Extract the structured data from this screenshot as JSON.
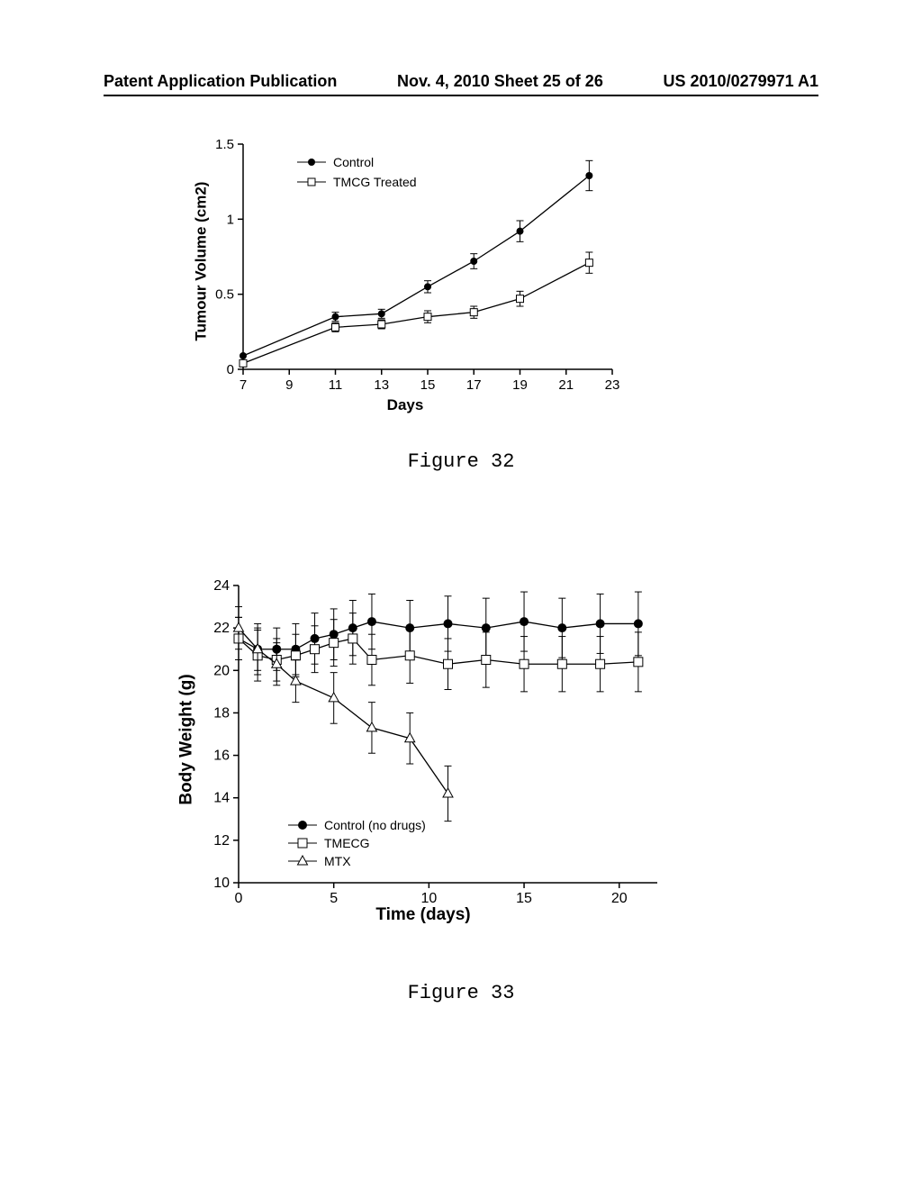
{
  "header": {
    "left": "Patent Application Publication",
    "center": "Nov. 4, 2010  Sheet 25 of 26",
    "right": "US 2010/0279971 A1"
  },
  "chart1": {
    "type": "line",
    "title": "Figure 32",
    "ylabel": "Tumour Volume (cm2)",
    "xlabel": "Days",
    "xlim": [
      7,
      23
    ],
    "ylim": [
      0,
      1.5
    ],
    "xticks": [
      7,
      9,
      11,
      13,
      15,
      17,
      19,
      21,
      23
    ],
    "yticks": [
      0,
      0.5,
      1,
      1.5
    ],
    "ylabel_fontsize": 17,
    "xlabel_fontsize": 17,
    "tick_fontsize": 15,
    "series": [
      {
        "name": "Control",
        "marker": "filled-circle",
        "x": [
          7,
          11,
          13,
          15,
          17,
          19,
          22
        ],
        "y": [
          0.09,
          0.35,
          0.37,
          0.55,
          0.72,
          0.92,
          1.29
        ],
        "err": [
          0,
          0.03,
          0.03,
          0.04,
          0.05,
          0.07,
          0.1
        ]
      },
      {
        "name": "TMCG Treated",
        "marker": "open-square",
        "x": [
          7,
          11,
          13,
          15,
          17,
          19,
          22
        ],
        "y": [
          0.04,
          0.28,
          0.3,
          0.35,
          0.38,
          0.47,
          0.71
        ],
        "err": [
          0,
          0.03,
          0.03,
          0.04,
          0.04,
          0.05,
          0.07
        ]
      }
    ]
  },
  "chart2": {
    "type": "line",
    "title": "Figure 33",
    "ylabel": "Body Weight (g)",
    "xlabel": "Time (days)",
    "xlim": [
      0,
      22
    ],
    "ylim": [
      10,
      24
    ],
    "xticks": [
      0,
      5,
      10,
      15,
      20
    ],
    "yticks": [
      10,
      12,
      14,
      16,
      18,
      20,
      22,
      24
    ],
    "ylabel_fontsize": 19,
    "xlabel_fontsize": 19,
    "tick_fontsize": 16,
    "series": [
      {
        "name": "Control (no drugs)",
        "marker": "filled-circle",
        "x": [
          0,
          1,
          2,
          3,
          4,
          5,
          6,
          7,
          9,
          11,
          13,
          15,
          17,
          19,
          21
        ],
        "y": [
          21.5,
          21,
          21,
          21,
          21.5,
          21.7,
          22,
          22.3,
          22,
          22.2,
          22,
          22.3,
          22,
          22.2,
          22.2
        ],
        "err": [
          1,
          1.2,
          1,
          1.2,
          1.2,
          1.2,
          1.3,
          1.3,
          1.3,
          1.3,
          1.4,
          1.4,
          1.4,
          1.4,
          1.5
        ]
      },
      {
        "name": "TMECG",
        "marker": "open-square",
        "x": [
          0,
          1,
          2,
          3,
          4,
          5,
          6,
          7,
          9,
          11,
          13,
          15,
          17,
          19,
          21
        ],
        "y": [
          21.5,
          20.7,
          20.5,
          20.7,
          21,
          21.3,
          21.5,
          20.5,
          20.7,
          20.3,
          20.5,
          20.3,
          20.3,
          20.3,
          20.4
        ],
        "err": [
          1,
          1.2,
          1,
          1,
          1.1,
          1.1,
          1.2,
          1.2,
          1.3,
          1.2,
          1.3,
          1.3,
          1.3,
          1.3,
          1.4
        ]
      },
      {
        "name": "MTX",
        "marker": "open-triangle",
        "x": [
          0,
          1,
          2,
          3,
          5,
          7,
          9,
          11
        ],
        "y": [
          22,
          21,
          20.3,
          19.5,
          18.7,
          17.3,
          16.8,
          14.2
        ],
        "err": [
          1,
          1,
          1,
          1,
          1.2,
          1.2,
          1.2,
          1.3
        ]
      }
    ]
  },
  "colors": {
    "line": "#000000",
    "background": "#ffffff",
    "text": "#000000"
  }
}
